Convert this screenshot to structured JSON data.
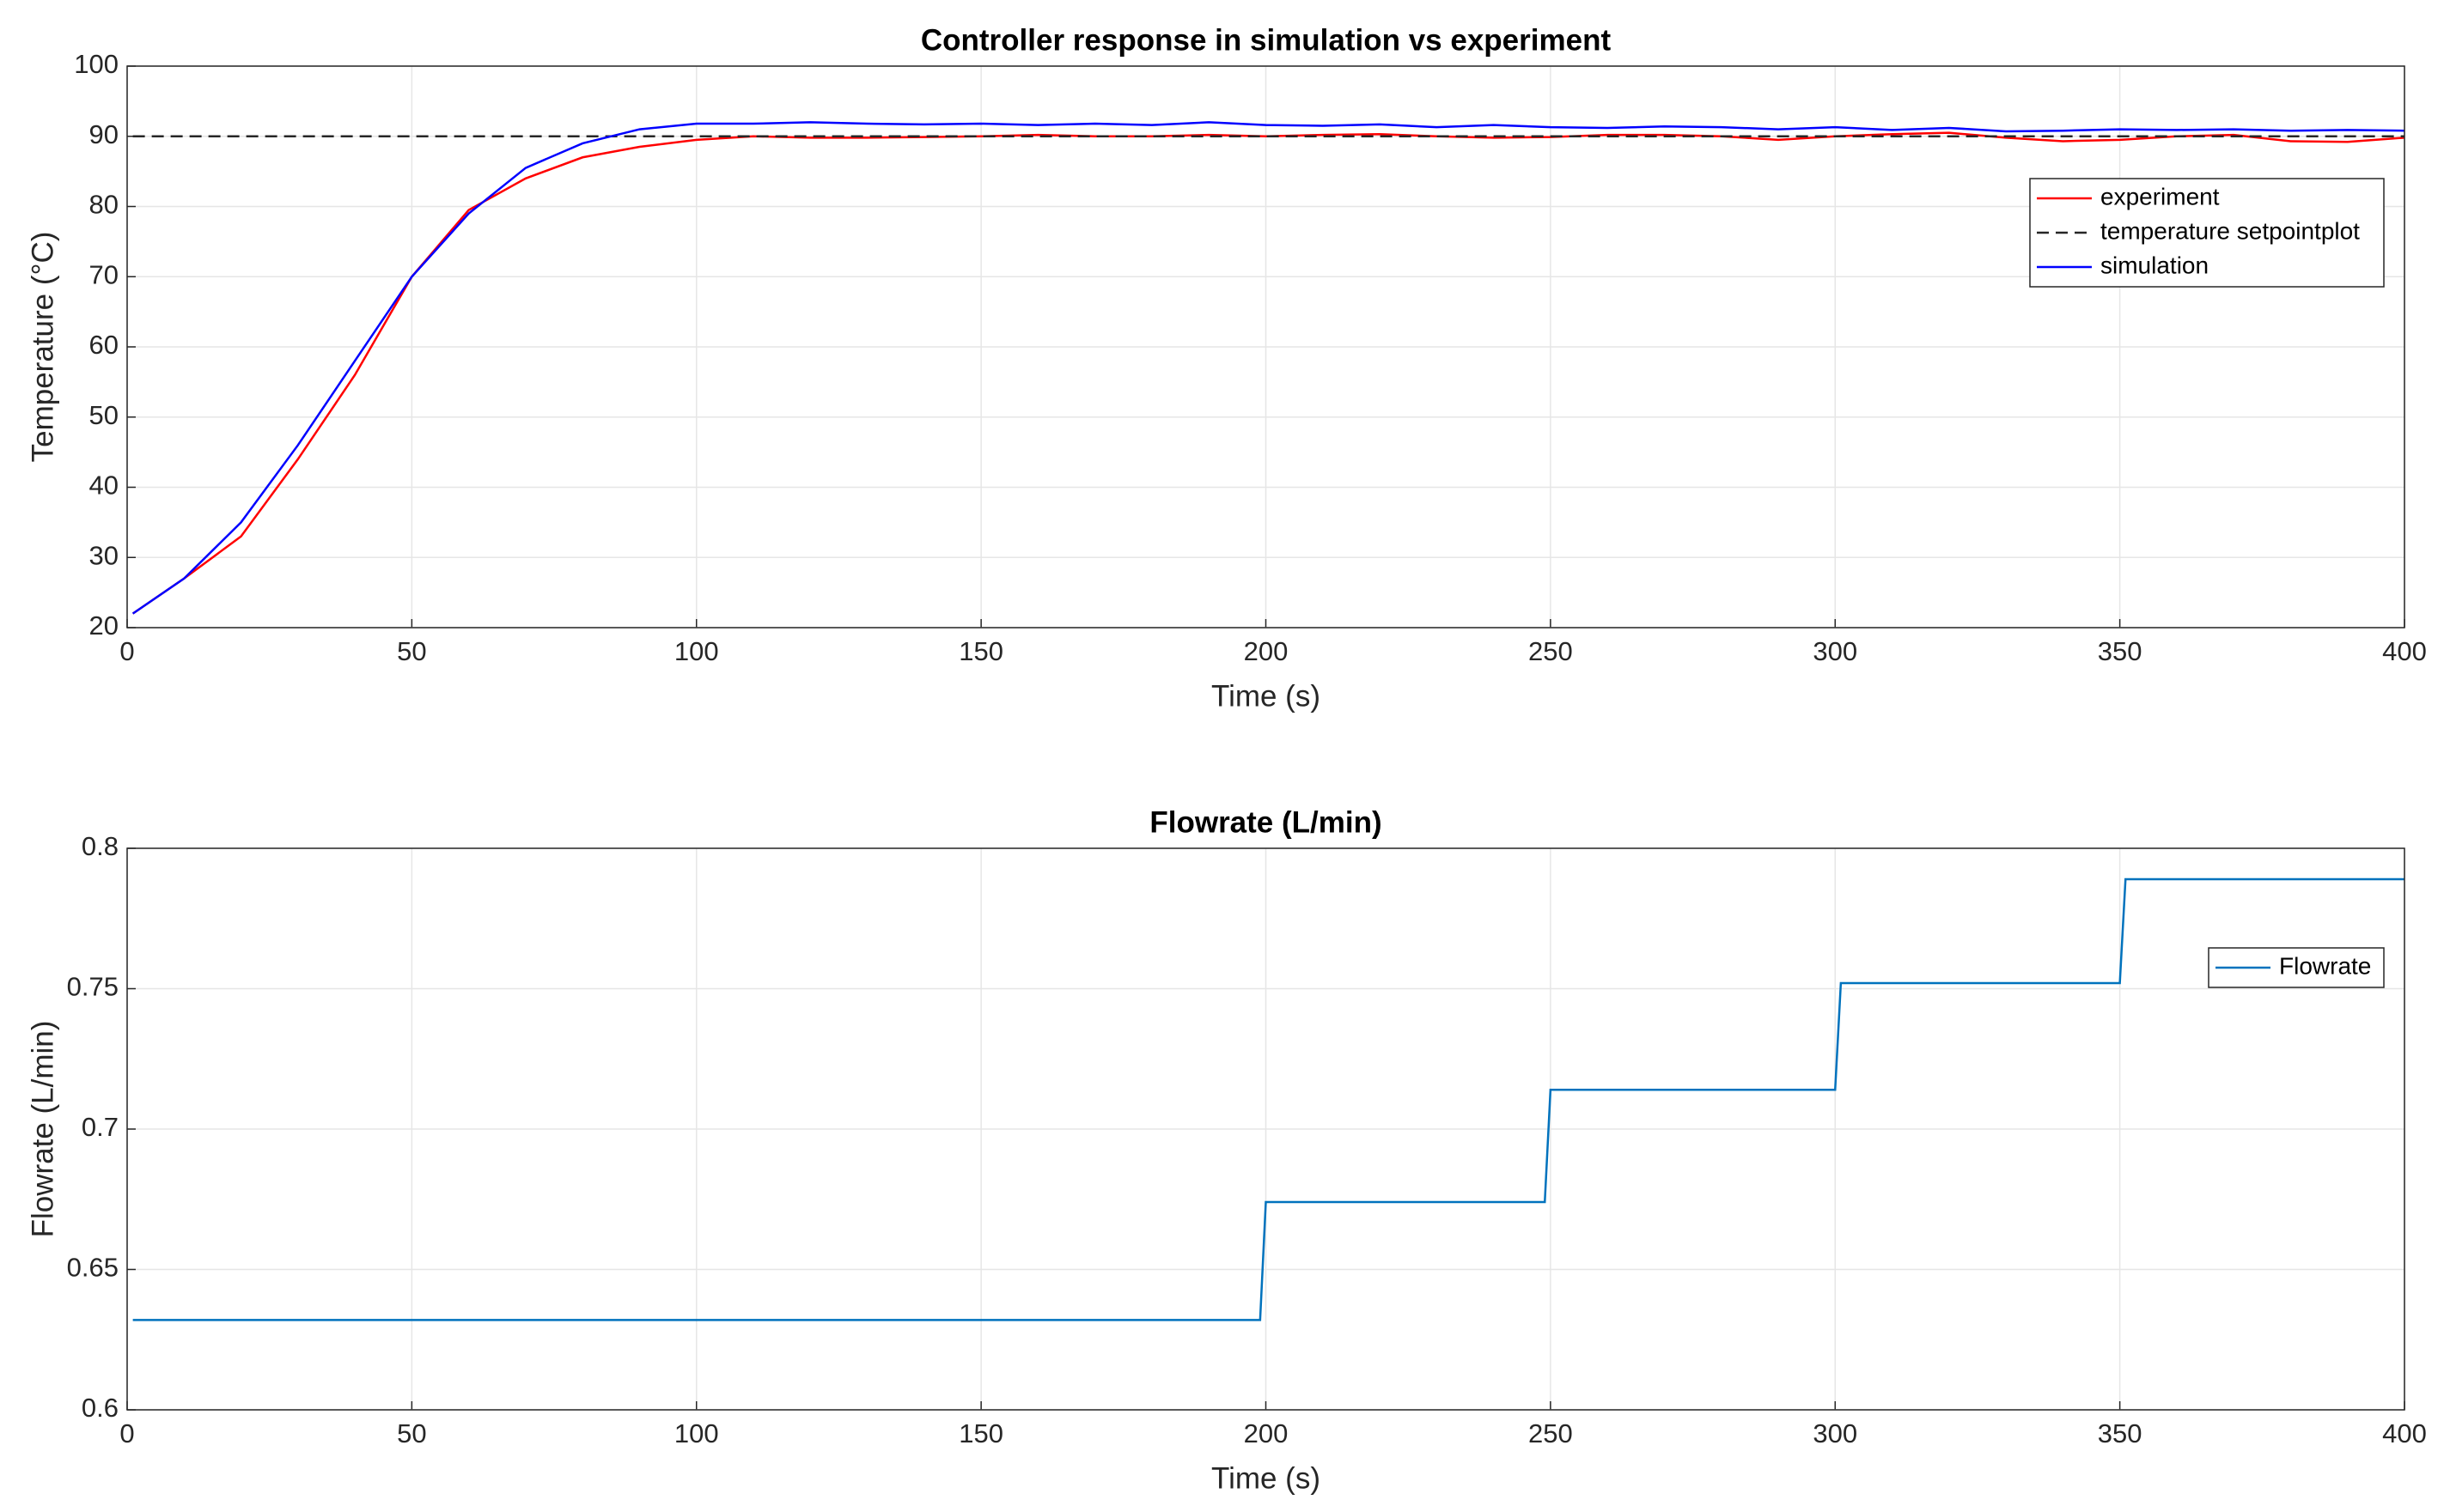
{
  "chart_data": [
    {
      "type": "line",
      "title": "Controller response in simulation vs experiment",
      "x_label": "Time (s)",
      "y_label": "Temperature (°C)",
      "x": [
        1,
        10,
        20,
        30,
        40,
        50,
        60,
        70,
        80,
        90,
        100,
        110,
        120,
        130,
        140,
        150,
        160,
        170,
        180,
        190,
        200,
        210,
        220,
        230,
        240,
        250,
        260,
        270,
        280,
        290,
        300,
        310,
        320,
        330,
        340,
        350,
        360,
        370,
        380,
        390,
        400
      ],
      "series": [
        {
          "name": "experiment",
          "color": "#ff0000",
          "style": "solid",
          "values": [
            22,
            27,
            33,
            44,
            56,
            70,
            79.5,
            84,
            87,
            88.5,
            89.5,
            90,
            89.8,
            89.8,
            89.9,
            90,
            90.2,
            90,
            90,
            90.2,
            90,
            90.2,
            90.3,
            90,
            89.8,
            89.9,
            90.2,
            90.2,
            90,
            89.5,
            90,
            90.3,
            90.5,
            89.8,
            89.3,
            89.5,
            90,
            90.2,
            89.3,
            89.2,
            89.8
          ]
        },
        {
          "name": "temperature setpointplot",
          "color": "#262626",
          "style": "dashed",
          "values": [
            90,
            90,
            90,
            90,
            90,
            90,
            90,
            90,
            90,
            90,
            90,
            90,
            90,
            90,
            90,
            90,
            90,
            90,
            90,
            90,
            90,
            90,
            90,
            90,
            90,
            90,
            90,
            90,
            90,
            90,
            90,
            90,
            90,
            90,
            90,
            90,
            90,
            90,
            90,
            90,
            90
          ]
        },
        {
          "name": "simulation",
          "color": "#0000ff",
          "style": "solid",
          "values": [
            22,
            27,
            35,
            46,
            58,
            70,
            79,
            85.5,
            89,
            91,
            91.8,
            91.8,
            92,
            91.8,
            91.7,
            91.8,
            91.6,
            91.8,
            91.6,
            92,
            91.6,
            91.5,
            91.7,
            91.3,
            91.6,
            91.3,
            91.2,
            91.4,
            91.3,
            91,
            91.3,
            90.9,
            91.2,
            90.7,
            90.8,
            91,
            90.9,
            91,
            90.8,
            90.9,
            90.8
          ]
        }
      ],
      "xlim": [
        0,
        400
      ],
      "xticks": [
        0,
        50,
        100,
        150,
        200,
        250,
        300,
        350,
        400
      ],
      "ylim": [
        20,
        100
      ],
      "yticks": [
        20,
        30,
        40,
        50,
        60,
        70,
        80,
        90,
        100
      ],
      "grid": true,
      "legend": "upper right"
    },
    {
      "type": "line",
      "title": "Flowrate (L/min)",
      "x_label": "Time (s)",
      "y_label": "Flowrate (L/min)",
      "x": [
        1,
        199,
        200,
        249,
        250,
        300,
        301,
        350,
        351,
        400
      ],
      "series": [
        {
          "name": "Flowrate",
          "color": "#0072bd",
          "style": "solid",
          "values": [
            0.632,
            0.632,
            0.674,
            0.674,
            0.714,
            0.714,
            0.752,
            0.752,
            0.789,
            0.789
          ]
        }
      ],
      "xlim": [
        0,
        400
      ],
      "xticks": [
        0,
        50,
        100,
        150,
        200,
        250,
        300,
        350,
        400
      ],
      "ylim": [
        0.6,
        0.8
      ],
      "yticks": [
        0.6,
        0.65,
        0.7,
        0.75,
        0.8
      ],
      "grid": true,
      "legend": "right"
    }
  ]
}
